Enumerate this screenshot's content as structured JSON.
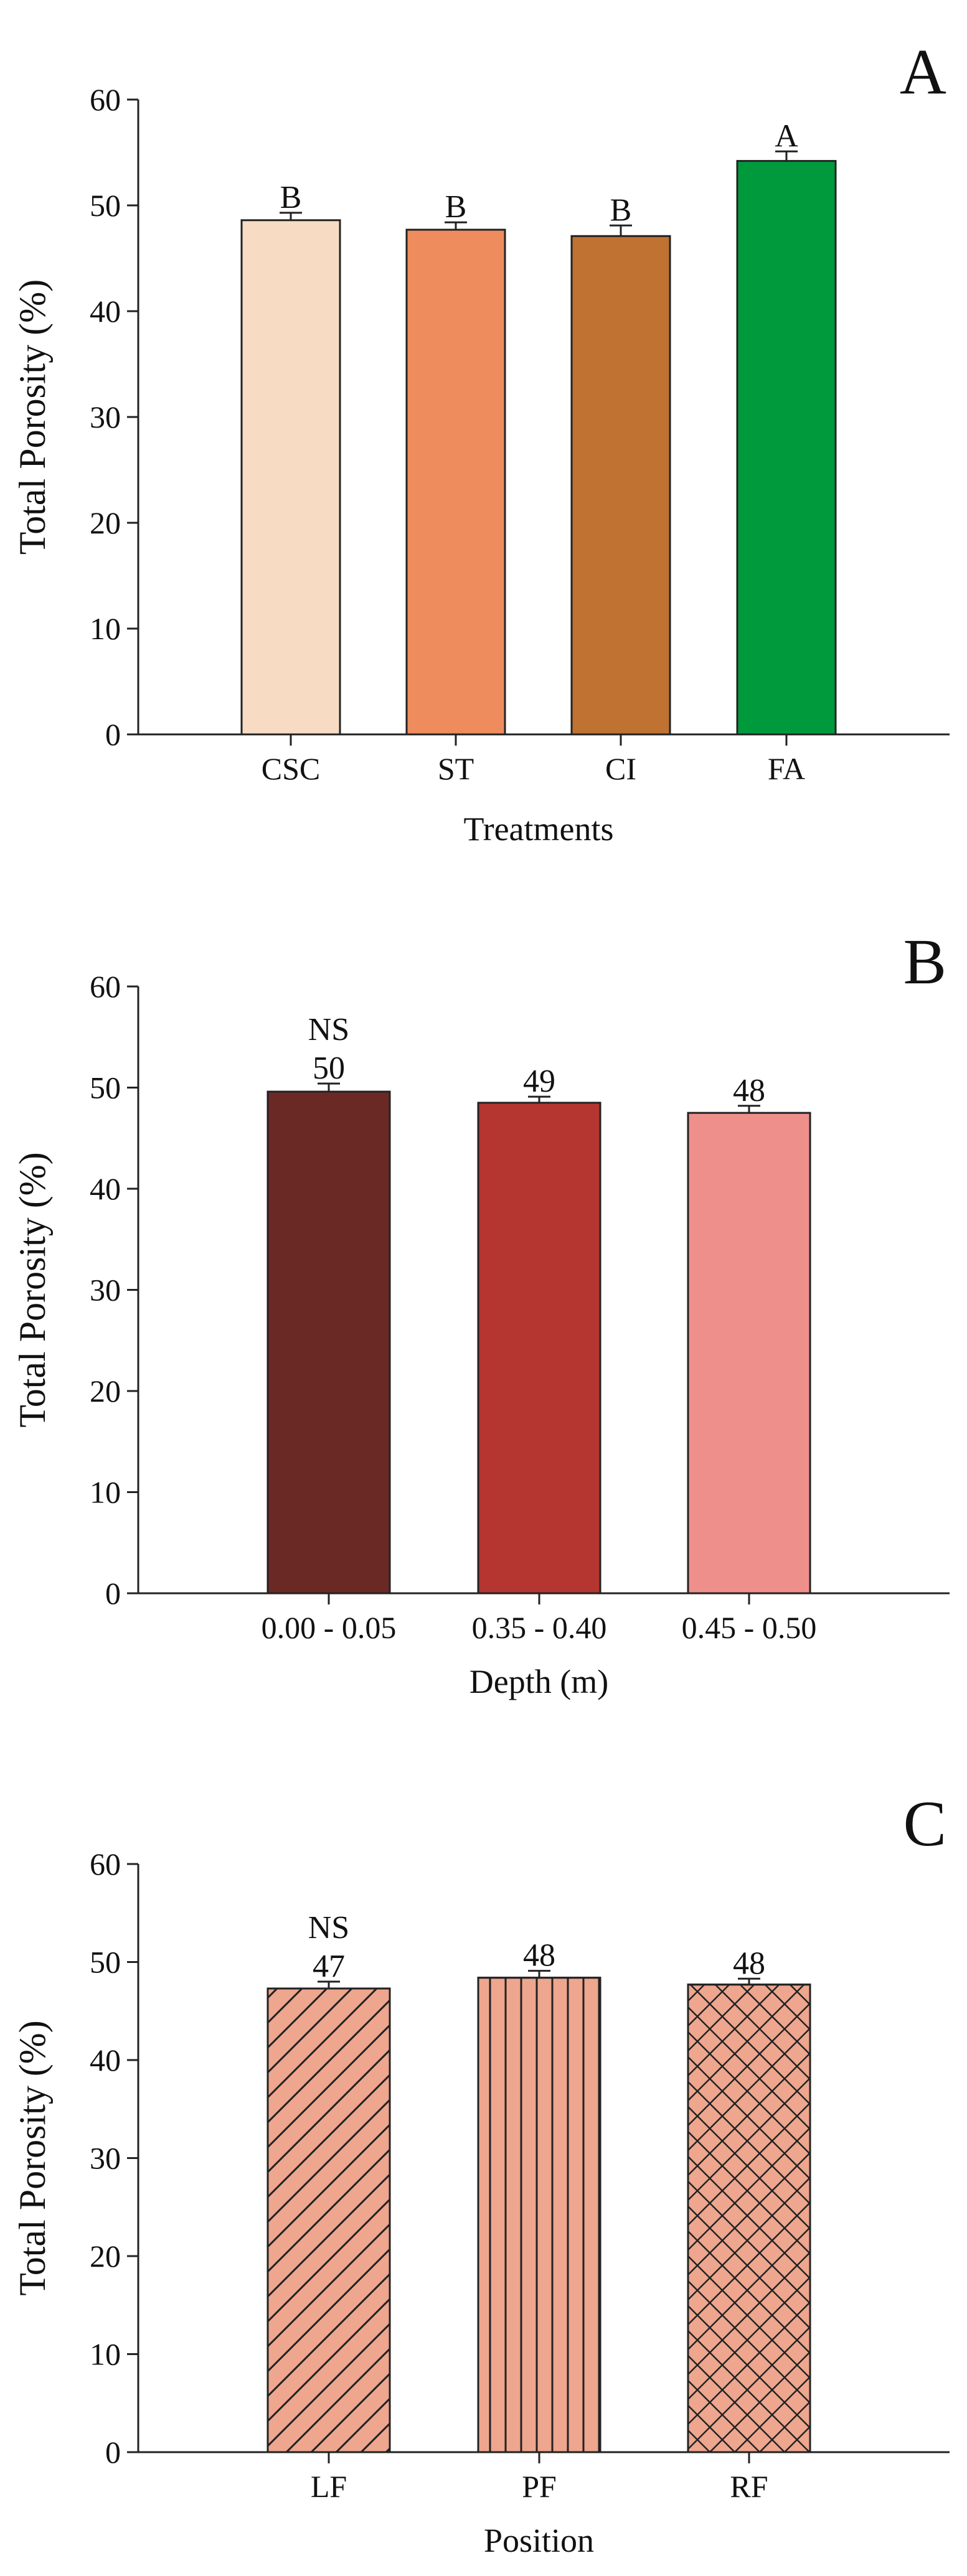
{
  "chart_data": [
    {
      "type": "bar",
      "panel_letter": "A",
      "ylabel": "Total Porosity (%)",
      "xlabel": "Treatments",
      "ylim": [
        0,
        60
      ],
      "yticks": [
        "0",
        "10",
        "20",
        "30",
        "40",
        "50",
        "60"
      ],
      "categories": [
        "CSC",
        "ST",
        "CI",
        "FA"
      ],
      "values": [
        48.6,
        47.7,
        47.1,
        54.2
      ],
      "errors": [
        0.7,
        0.7,
        1.0,
        0.9
      ],
      "top_labels": [
        [
          "B"
        ],
        [
          "B"
        ],
        [
          "B"
        ],
        [
          "A"
        ]
      ],
      "colors": [
        "#f7dcc3",
        "#ee8c5e",
        "#bf7232",
        "#009a3d"
      ],
      "pattern": [
        "none",
        "none",
        "none",
        "none"
      ]
    },
    {
      "type": "bar",
      "panel_letter": "B",
      "ylabel": "Total Porosity (%)",
      "xlabel": "Depth (m)",
      "ylim": [
        0,
        60
      ],
      "yticks": [
        "0",
        "10",
        "20",
        "30",
        "40",
        "50",
        "60"
      ],
      "categories": [
        "0.00 - 0.05",
        "0.35 - 0.40",
        "0.45 - 0.50"
      ],
      "values": [
        49.6,
        48.5,
        47.5
      ],
      "errors": [
        0.8,
        0.6,
        0.7
      ],
      "top_labels": [
        [
          "NS",
          "50"
        ],
        [
          "49"
        ],
        [
          "48"
        ]
      ],
      "colors": [
        "#6b2926",
        "#b53631",
        "#ef8f8b"
      ],
      "pattern": [
        "none",
        "none",
        "none"
      ]
    },
    {
      "type": "bar",
      "panel_letter": "C",
      "ylabel": "Total Porosity (%)",
      "xlabel": "Position",
      "ylim": [
        0,
        60
      ],
      "yticks": [
        "0",
        "10",
        "20",
        "30",
        "40",
        "50",
        "60"
      ],
      "categories": [
        "LF",
        "PF",
        "RF"
      ],
      "values": [
        47.3,
        48.4,
        47.7
      ],
      "errors": [
        0.7,
        0.7,
        0.6
      ],
      "top_labels": [
        [
          "NS",
          "47"
        ],
        [
          "48"
        ],
        [
          "48"
        ]
      ],
      "colors": [
        "#eea68e",
        "#eea68e",
        "#eea68e"
      ],
      "pattern": [
        "diag",
        "vert",
        "cross"
      ]
    }
  ]
}
